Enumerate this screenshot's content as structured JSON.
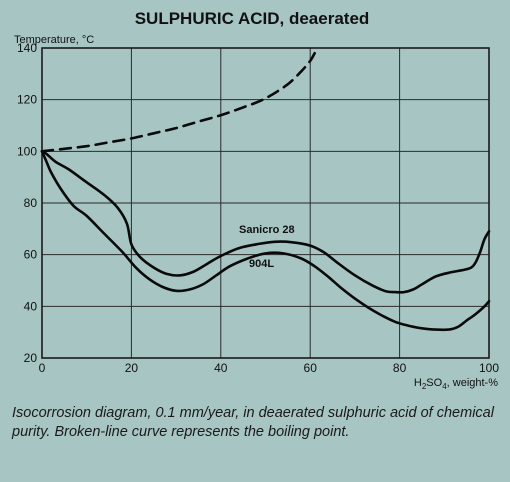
{
  "chart_data": {
    "type": "line",
    "title": "SULPHURIC ACID, deaerated",
    "ylabel": "Temperature, °C",
    "xlabel_main": "H",
    "xlabel_sub1": "2",
    "xlabel_mid": "SO",
    "xlabel_sub2": "4",
    "xlabel_tail": ", weight-%",
    "xlim": [
      0,
      100
    ],
    "ylim": [
      20,
      140
    ],
    "xticks": [
      0,
      20,
      40,
      60,
      80,
      100
    ],
    "yticks": [
      20,
      40,
      60,
      80,
      100,
      120,
      140
    ],
    "grid": true,
    "series": [
      {
        "name": "Sanicro 28",
        "style": "solid",
        "x": [
          0,
          1,
          3,
          6,
          10,
          14,
          17,
          19,
          20,
          22,
          25,
          28,
          31,
          34,
          37,
          40,
          44,
          48,
          52,
          56,
          60,
          63,
          66,
          70,
          74,
          77,
          79,
          81,
          83,
          85,
          88,
          91,
          94,
          96,
          97,
          98,
          99,
          100
        ],
        "y": [
          100,
          99,
          96,
          93,
          88,
          83,
          78,
          72,
          64,
          59,
          55,
          52.5,
          52,
          53.5,
          56.5,
          59.5,
          62.5,
          64,
          65,
          64.8,
          63.5,
          61,
          57,
          52,
          48,
          45.8,
          45.5,
          45.5,
          46.5,
          48.5,
          51.5,
          53,
          54,
          55,
          57,
          61,
          66,
          69
        ]
      },
      {
        "name": "904L",
        "style": "solid",
        "x": [
          0,
          1,
          2,
          4,
          7,
          10,
          14,
          18,
          21,
          24,
          27,
          30,
          33,
          36,
          39,
          42,
          46,
          50,
          54,
          58,
          61,
          64,
          67,
          70,
          73,
          76,
          79,
          82,
          85,
          88,
          91,
          93,
          95,
          97,
          99,
          100
        ],
        "y": [
          100,
          96,
          92,
          86,
          79,
          75,
          68,
          61,
          55,
          50.5,
          47.5,
          46,
          46.5,
          48.5,
          52,
          55.5,
          58.5,
          60.5,
          60.5,
          58.5,
          55.5,
          51.5,
          47,
          43,
          39.5,
          36.5,
          34,
          32.5,
          31.5,
          31,
          31,
          32,
          34.5,
          37,
          40,
          42
        ]
      },
      {
        "name": "",
        "style": "dashed",
        "x": [
          0,
          5,
          10,
          15,
          20,
          25,
          30,
          35,
          40,
          45,
          50,
          55,
          58,
          60,
          61
        ],
        "y": [
          100,
          101,
          102,
          103.5,
          105,
          107,
          109,
          111.5,
          114,
          117,
          120.5,
          126,
          131,
          135,
          138
        ]
      }
    ],
    "annotations": [
      "Sanicro 28",
      "904L"
    ]
  },
  "caption": "Isocorrosion diagram, 0.1 mm/year, in deaerated sulphuric acid of chemical purity. Broken-line curve represents the boiling point.",
  "colors": {
    "background": "#a7c6c3",
    "grid": "#2a2a2a",
    "curve": "#0a0a0a"
  }
}
